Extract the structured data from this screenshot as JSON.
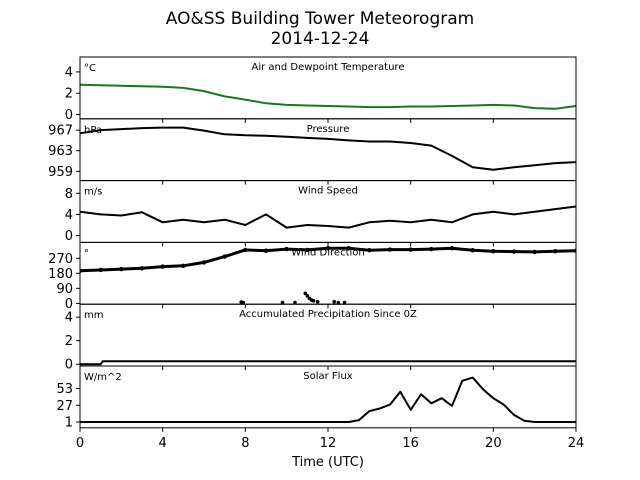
{
  "figure": {
    "title_line1": "AO&SS Building Tower Meteorogram",
    "title_line2": "2014-12-24",
    "xlabel": "Time (UTC)"
  },
  "chart_data": [
    {
      "type": "line",
      "title": "Air and Dewpoint Temperature",
      "unit": "°C",
      "color": "#1a7a1a",
      "ylim": [
        -0.4,
        5.4
      ],
      "yticks": [
        0,
        2,
        4
      ],
      "ytick_labels": [
        "0",
        "2",
        "4"
      ],
      "x": [
        0,
        1,
        2,
        3,
        4,
        5,
        6,
        7,
        8,
        9,
        10,
        11,
        12,
        13,
        14,
        15,
        16,
        17,
        18,
        19,
        20,
        21,
        22,
        23,
        24
      ],
      "values": [
        2.8,
        2.75,
        2.7,
        2.65,
        2.6,
        2.5,
        2.2,
        1.7,
        1.4,
        1.05,
        0.9,
        0.85,
        0.8,
        0.75,
        0.7,
        0.7,
        0.75,
        0.75,
        0.8,
        0.85,
        0.9,
        0.85,
        0.6,
        0.55,
        0.8
      ]
    },
    {
      "type": "line",
      "title": "Pressure",
      "unit": "hPa",
      "color": "#000000",
      "ylim": [
        957.2,
        969.2
      ],
      "yticks": [
        959,
        963,
        967
      ],
      "ytick_labels": [
        "959",
        "963",
        "967"
      ],
      "x": [
        0,
        1,
        2,
        3,
        4,
        5,
        6,
        7,
        8,
        9,
        10,
        11,
        12,
        13,
        14,
        15,
        16,
        17,
        18,
        19,
        20,
        21,
        22,
        23,
        24
      ],
      "values": [
        966.4,
        967.0,
        967.2,
        967.4,
        967.5,
        967.5,
        966.9,
        966.2,
        966.0,
        965.9,
        965.7,
        965.5,
        965.3,
        965.0,
        964.8,
        964.8,
        964.5,
        964.0,
        962.0,
        959.8,
        959.3,
        959.8,
        960.2,
        960.6,
        960.8
      ]
    },
    {
      "type": "line",
      "title": "Wind Speed",
      "unit": "m/s",
      "color": "#000000",
      "ylim": [
        -1.3,
        10.4
      ],
      "yticks": [
        0,
        4,
        8
      ],
      "ytick_labels": [
        "0",
        "4",
        "8"
      ],
      "x": [
        0,
        1,
        2,
        3,
        4,
        5,
        6,
        7,
        8,
        9,
        10,
        11,
        12,
        13,
        14,
        15,
        16,
        17,
        18,
        19,
        20,
        21,
        22,
        23,
        24
      ],
      "values": [
        4.5,
        4.0,
        3.8,
        4.4,
        2.5,
        3.0,
        2.5,
        3.0,
        2.0,
        4.0,
        1.5,
        2.0,
        1.8,
        1.5,
        2.5,
        2.8,
        2.5,
        3.0,
        2.5,
        4.0,
        4.5,
        4.0,
        4.5,
        5.0,
        5.5
      ]
    },
    {
      "type": "scatter",
      "title": "Wind Direction",
      "unit": "°",
      "color": "#000000",
      "ylim": [
        -5,
        365
      ],
      "yticks": [
        0,
        90,
        180,
        270
      ],
      "ytick_labels": [
        "0",
        "90",
        "180",
        "270"
      ],
      "x": [
        0,
        1,
        2,
        3,
        4,
        5,
        6,
        7,
        8,
        9,
        10,
        11,
        12,
        13,
        14,
        15,
        16,
        17,
        18,
        19,
        20,
        21,
        22,
        23,
        24
      ],
      "values": [
        195,
        200,
        205,
        210,
        220,
        225,
        245,
        280,
        320,
        315,
        325,
        320,
        330,
        330,
        318,
        322,
        322,
        325,
        330,
        318,
        312,
        310,
        308,
        312,
        315
      ],
      "outliers_x": [
        7.8,
        7.9,
        9.8,
        10.4,
        10.9,
        11.0,
        11.1,
        11.2,
        11.3,
        11.5,
        12.3,
        12.5,
        12.8
      ],
      "outliers_y": [
        8,
        5,
        5,
        5,
        60,
        45,
        30,
        20,
        15,
        10,
        10,
        5,
        5
      ]
    },
    {
      "type": "line",
      "title": "Accumulated Precipitation Since 0Z",
      "unit": "mm",
      "color": "#000000",
      "ylim": [
        -0.15,
        5.1
      ],
      "yticks": [
        0,
        2,
        4
      ],
      "ytick_labels": [
        "0",
        "2",
        "4"
      ],
      "x": [
        0,
        1.0,
        1.1,
        24
      ],
      "values": [
        0,
        0,
        0.25,
        0.25
      ]
    },
    {
      "type": "line",
      "title": "Solar Flux",
      "unit": "W/m^2",
      "color": "#000000",
      "ylim": [
        -8,
        88
      ],
      "yticks": [
        1,
        27,
        53
      ],
      "ytick_labels": [
        "1",
        "27",
        "53"
      ],
      "x": [
        0,
        13,
        13.5,
        14,
        14.5,
        15,
        15.5,
        16,
        16.5,
        17,
        17.5,
        18,
        18.5,
        19,
        19.5,
        20,
        20.5,
        21,
        21.5,
        22,
        24
      ],
      "values": [
        1,
        1,
        4,
        18,
        22,
        28,
        48,
        20,
        44,
        30,
        38,
        26,
        65,
        70,
        52,
        38,
        28,
        12,
        3,
        1,
        1
      ]
    }
  ],
  "x_axis": {
    "range": [
      0,
      24
    ],
    "ticks": [
      0,
      4,
      8,
      12,
      16,
      20,
      24
    ],
    "tick_labels": [
      "0",
      "4",
      "8",
      "12",
      "16",
      "20",
      "24"
    ]
  }
}
